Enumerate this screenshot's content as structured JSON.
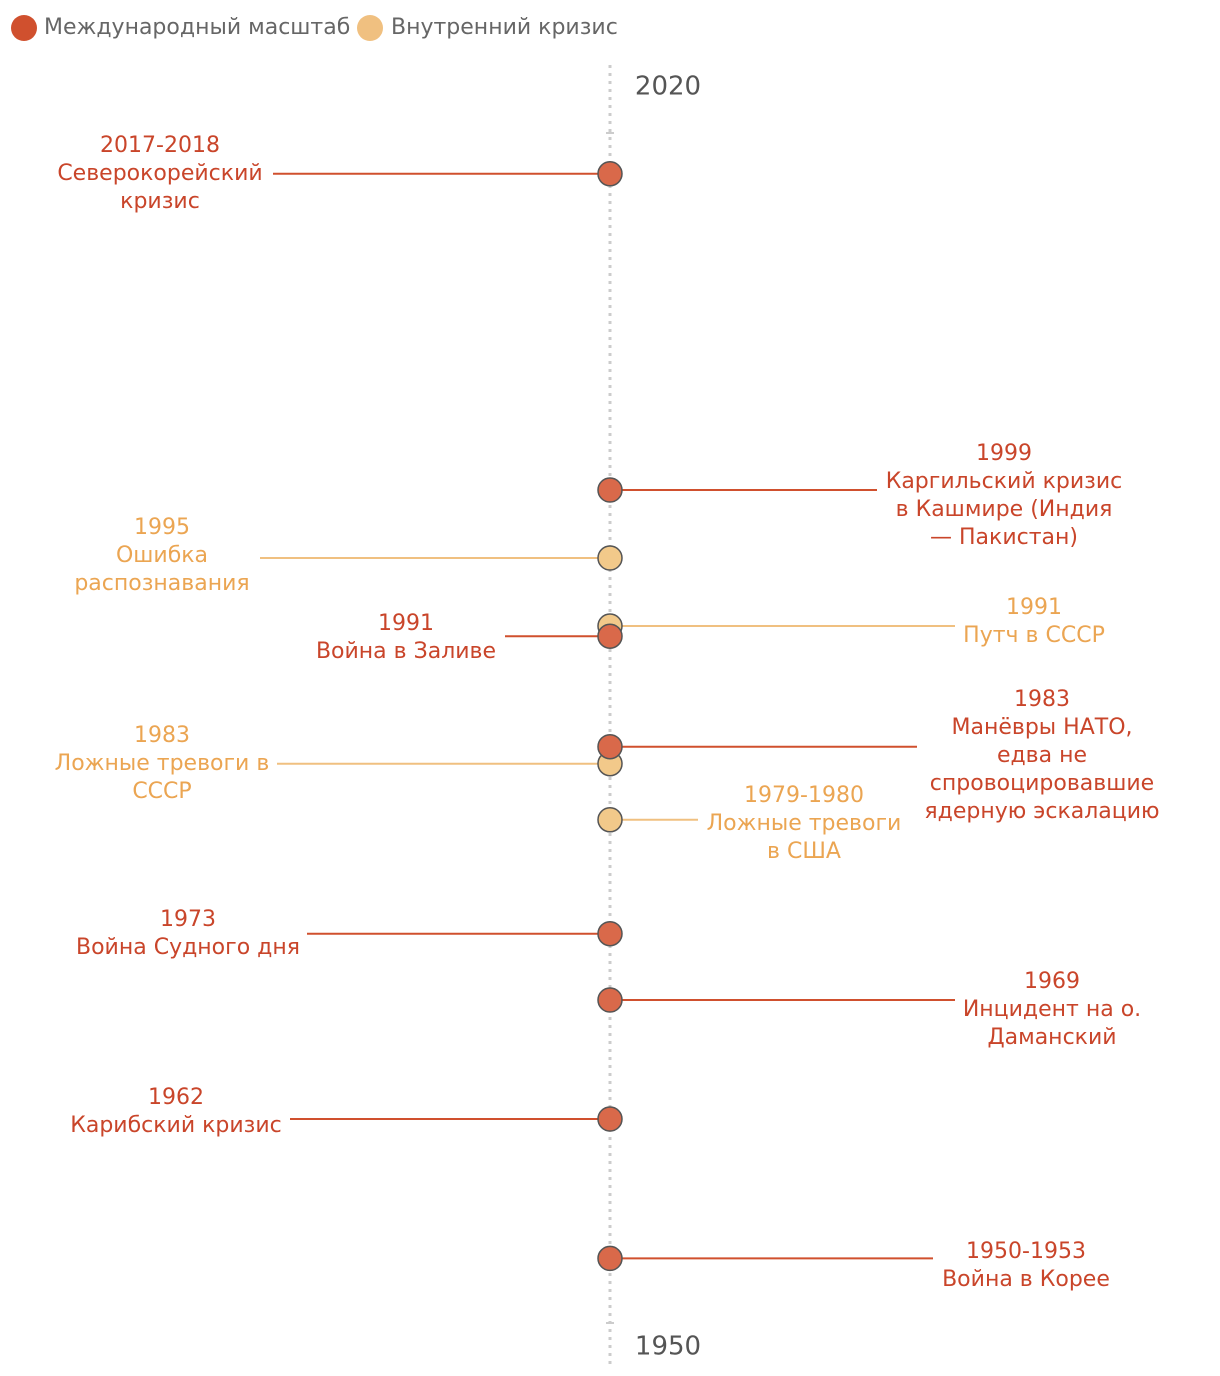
{
  "chart_data": {
    "type": "timeline",
    "yticks": [
      2020,
      1950
    ],
    "series": [
      {
        "name": "Международный масштаб",
        "color": "#d0502e",
        "events": [
          {
            "date": "2017-2018",
            "value": 2017.6,
            "lines": [
              "Северокорейский",
              "кризис"
            ]
          },
          {
            "date": "1999",
            "value": 1999,
            "lines": [
              "Каргильский кризис",
              "в Кашмире (Индия",
              "— Пакистан)"
            ]
          },
          {
            "date": "1991",
            "value": 1990.4,
            "lines": [
              "Война в Заливе"
            ]
          },
          {
            "date": "1983",
            "value": 1983.9,
            "lines": [
              "Манёвры НАТО,",
              "едва не",
              "спровоцировавшие",
              "ядерную эскалацию"
            ]
          },
          {
            "date": "1973",
            "value": 1972.9,
            "lines": [
              "Война Судного дня"
            ]
          },
          {
            "date": "1969",
            "value": 1969,
            "lines": [
              "Инцидент на о.",
              "Даманский"
            ]
          },
          {
            "date": "1962",
            "value": 1962,
            "lines": [
              "Карибский кризис"
            ]
          },
          {
            "date": "1950-1953",
            "value": 1953.8,
            "lines": [
              "Война в Корее"
            ]
          }
        ]
      },
      {
        "name": "Внутренний кризис",
        "color": "#f0c080",
        "events": [
          {
            "date": "1995",
            "value": 1995,
            "lines": [
              "Ошибка",
              "распознавания"
            ]
          },
          {
            "date": "1991",
            "value": 1991,
            "lines": [
              "Путч в СССР"
            ]
          },
          {
            "date": "1983",
            "value": 1982.9,
            "lines": [
              "Ложные тревоги в",
              "СССР"
            ]
          },
          {
            "date": "1979-1980",
            "value": 1979.6,
            "lines": [
              "Ложные тревоги",
              "в США"
            ]
          }
        ]
      }
    ]
  }
}
